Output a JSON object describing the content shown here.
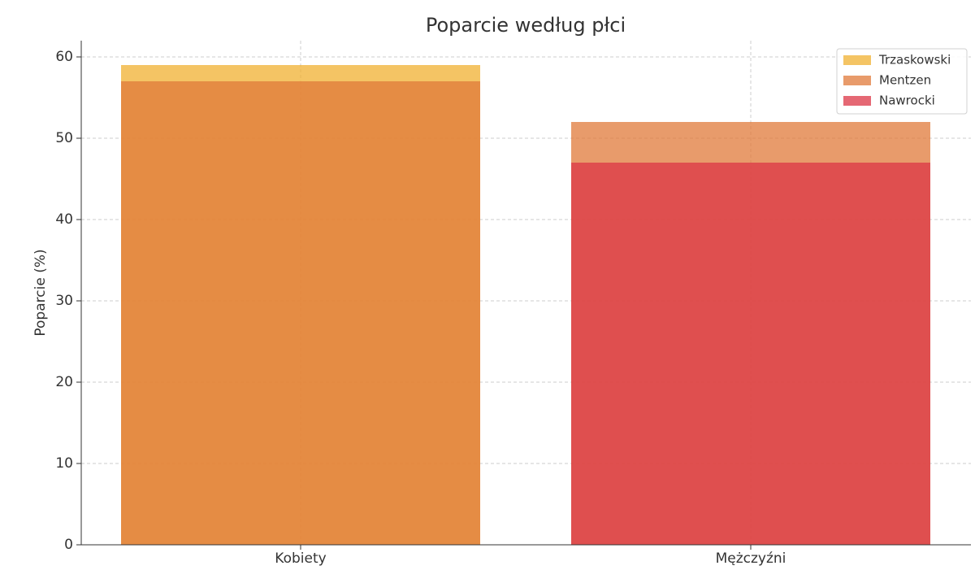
{
  "chart_data": {
    "type": "bar",
    "title": "Poparcie według płci",
    "y_label": "Poparcie (%)",
    "categories": [
      "Kobiety",
      "Mężczyźni"
    ],
    "series": [
      {
        "name": "Trzaskowski",
        "color": "#f0b030",
        "values": [
          59,
          null
        ]
      },
      {
        "name": "Mentzen",
        "color": "#e07a3a",
        "values": [
          57,
          52
        ]
      },
      {
        "name": "Nawrocki",
        "color": "#dc3545",
        "values": [
          null,
          47
        ]
      }
    ],
    "ylim": [
      0,
      62
    ],
    "yticks": [
      0,
      10,
      20,
      30,
      40,
      50,
      60
    ],
    "grid": true,
    "legend": "upper right"
  }
}
